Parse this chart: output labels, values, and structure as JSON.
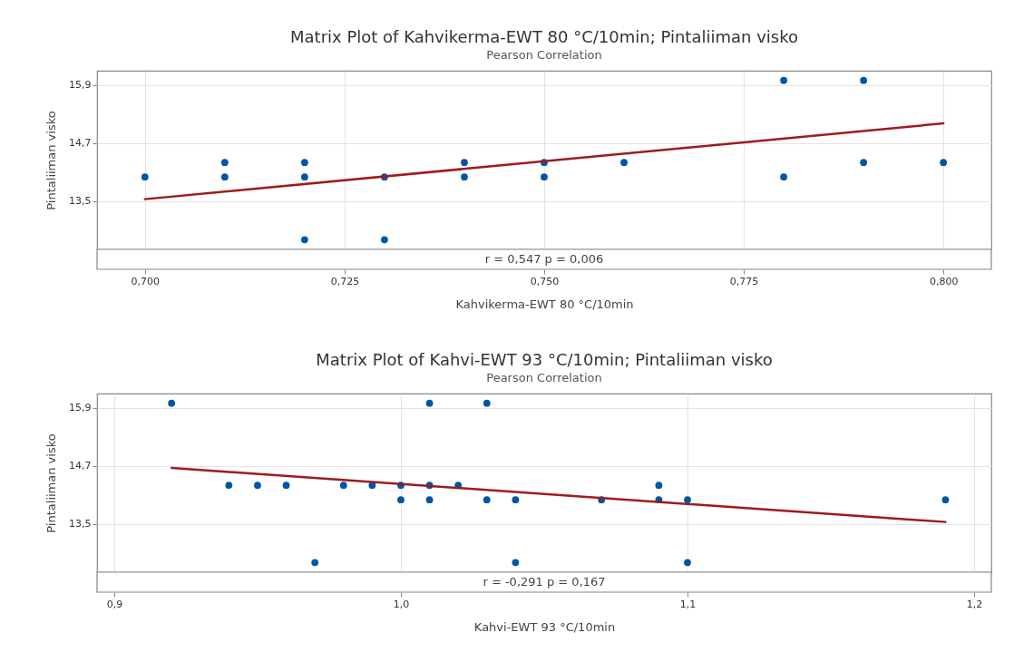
{
  "chart_data": [
    {
      "type": "scatter",
      "title": "Matrix Plot of Kahvikerma-EWT 80 °C/10min; Pintaliiman visko",
      "subtitle": "Pearson Correlation",
      "xlabel": "Kahvikerma-EWT 80 °C/10min",
      "ylabel": "Pintaliiman visko",
      "x": [
        0.7,
        0.71,
        0.71,
        0.72,
        0.72,
        0.72,
        0.73,
        0.73,
        0.74,
        0.74,
        0.75,
        0.75,
        0.76,
        0.78,
        0.78,
        0.79,
        0.79,
        0.8
      ],
      "series": [
        {
          "color": "#0055a8",
          "marker": "circle",
          "values": [
            14.0,
            14.3,
            14.0,
            14.3,
            14.0,
            12.7,
            14.0,
            12.7,
            14.3,
            14.0,
            14.3,
            14.0,
            14.3,
            16.0,
            14.0,
            16.0,
            14.3,
            14.3
          ]
        },
        {
          "type": "line",
          "color": "#9e1b1b",
          "x": [
            0.7,
            0.8
          ],
          "values": [
            13.54,
            15.11
          ]
        }
      ],
      "xlim": [
        0.694,
        0.806
      ],
      "xticks": [
        {
          "value": 0.7,
          "label": "0,700"
        },
        {
          "value": 0.725,
          "label": "0,725"
        },
        {
          "value": 0.75,
          "label": "0,750"
        },
        {
          "value": 0.775,
          "label": "0,775"
        },
        {
          "value": 0.8,
          "label": "0,800"
        }
      ],
      "ylim": [
        12.5,
        16.2
      ],
      "yticks": [
        {
          "value": 13.5,
          "label": "13,5"
        },
        {
          "value": 14.7,
          "label": "14,7"
        },
        {
          "value": 15.9,
          "label": "15,9"
        }
      ],
      "grid": true,
      "annotations": [
        "r = 0,547  p = 0,006"
      ]
    },
    {
      "type": "scatter",
      "title": "Matrix Plot of Kahvi-EWT 93 °C/10min; Pintaliiman visko",
      "subtitle": "Pearson Correlation",
      "xlabel": "Kahvi-EWT 93 °C/10min",
      "ylabel": "Pintaliiman visko",
      "x": [
        0.92,
        0.94,
        0.95,
        0.96,
        0.97,
        0.98,
        0.99,
        1.0,
        1.0,
        1.01,
        1.01,
        1.01,
        1.02,
        1.03,
        1.03,
        1.04,
        1.04,
        1.07,
        1.09,
        1.09,
        1.1,
        1.1,
        1.19
      ],
      "series": [
        {
          "color": "#0055a8",
          "marker": "circle",
          "values": [
            16.0,
            14.3,
            14.3,
            14.3,
            12.7,
            14.3,
            14.3,
            14.3,
            14.0,
            16.0,
            14.3,
            14.0,
            14.3,
            16.0,
            14.0,
            14.0,
            12.7,
            14.0,
            14.3,
            14.0,
            14.0,
            12.7,
            14.0
          ]
        },
        {
          "type": "line",
          "color": "#9e1b1b",
          "x": [
            0.92,
            1.19
          ],
          "values": [
            14.66,
            13.54
          ]
        }
      ],
      "xlim": [
        0.894,
        1.206
      ],
      "xticks": [
        {
          "value": 0.9,
          "label": "0,9"
        },
        {
          "value": 1.0,
          "label": "1,0"
        },
        {
          "value": 1.1,
          "label": "1,1"
        },
        {
          "value": 1.2,
          "label": "1,2"
        }
      ],
      "ylim": [
        12.5,
        16.2
      ],
      "yticks": [
        {
          "value": 13.5,
          "label": "13,5"
        },
        {
          "value": 14.7,
          "label": "14,7"
        },
        {
          "value": 15.9,
          "label": "15,9"
        }
      ],
      "grid": true,
      "annotations": [
        "r = -0,291  p = 0,167"
      ]
    }
  ]
}
